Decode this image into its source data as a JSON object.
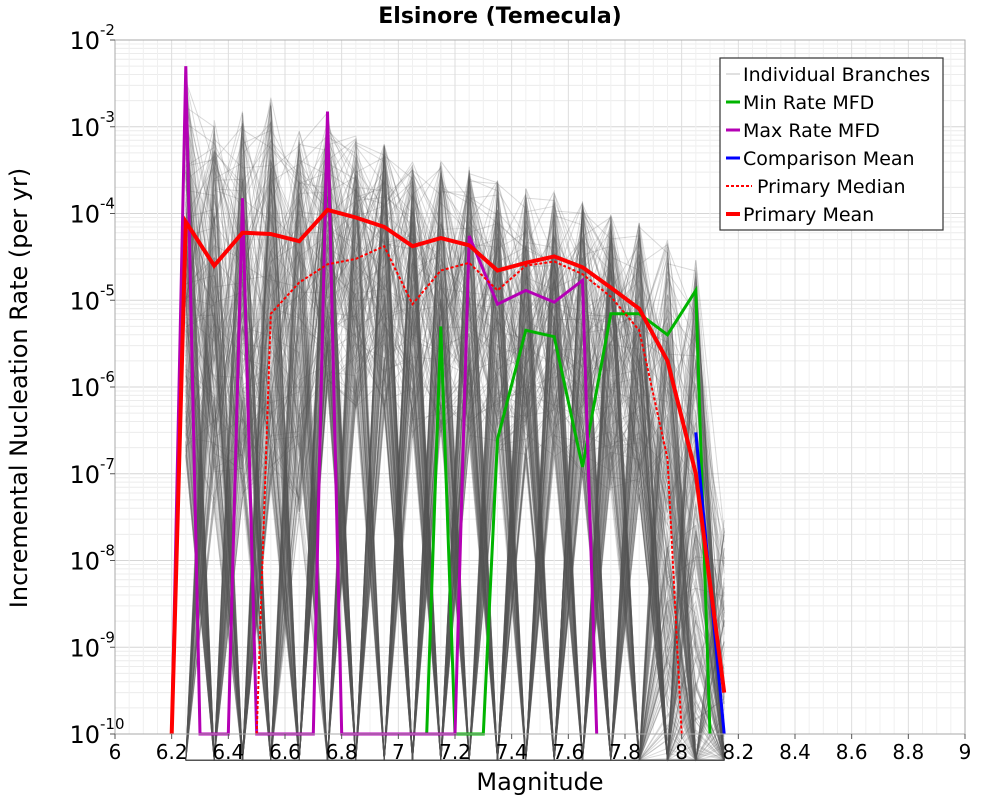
{
  "chart_data": {
    "type": "line",
    "title": "Elsinore (Temecula)",
    "xlabel": "Magnitude",
    "ylabel": "Incremental Nucleation Rate (per yr)",
    "xlim": [
      6,
      9
    ],
    "ylim": [
      1e-10,
      0.01
    ],
    "yscale": "log",
    "grid": true,
    "legend_position": "top-right",
    "xticks": [
      "6",
      "6.2",
      "6.4",
      "6.6",
      "6.8",
      "7",
      "7.2",
      "7.4",
      "7.6",
      "7.8",
      "8",
      "8.2",
      "8.4",
      "8.6",
      "8.8",
      "9"
    ],
    "yticks": [
      {
        "base": "10",
        "exp": "-10"
      },
      {
        "base": "10",
        "exp": "-9"
      },
      {
        "base": "10",
        "exp": "-8"
      },
      {
        "base": "10",
        "exp": "-7"
      },
      {
        "base": "10",
        "exp": "-6"
      },
      {
        "base": "10",
        "exp": "-5"
      },
      {
        "base": "10",
        "exp": "-4"
      },
      {
        "base": "10",
        "exp": "-3"
      },
      {
        "base": "10",
        "exp": "-2"
      }
    ],
    "legend": [
      {
        "label": "Individual Branches",
        "color": "#c0c0c0",
        "style": "solid"
      },
      {
        "label": "Min Rate MFD",
        "color": "#00b400",
        "style": "solid"
      },
      {
        "label": "Max Rate MFD",
        "color": "#b400b4",
        "style": "solid"
      },
      {
        "label": "Comparison Mean",
        "color": "#0000ff",
        "style": "solid"
      },
      {
        "label": "Primary Median",
        "color": "#ff0000",
        "style": "dotted"
      },
      {
        "label": "Primary Mean",
        "color": "#ff0000",
        "style": "solid"
      }
    ],
    "branch_envelope": {
      "color": "#555555",
      "x": [
        6.25,
        6.35,
        6.45,
        6.55,
        6.65,
        6.75,
        6.85,
        6.95,
        7.05,
        7.15,
        7.25,
        7.35,
        7.45,
        7.55,
        7.65,
        7.75,
        7.85,
        7.95,
        8.05,
        8.15
      ],
      "upper": [
        0.005,
        0.0012,
        0.0015,
        0.0022,
        0.0009,
        0.0015,
        0.0008,
        0.0007,
        0.0004,
        0.0004,
        0.00035,
        0.00025,
        0.0002,
        0.00018,
        0.00014,
        0.0001,
        8e-05,
        5e-05,
        3e-05,
        3e-08
      ]
    },
    "series": [
      {
        "name": "Min Rate MFD",
        "color": "#00b400",
        "style": "solid",
        "x": [
          7.1,
          7.15,
          7.2,
          7.3,
          7.35,
          7.45,
          7.55,
          7.65,
          7.75,
          7.85,
          7.95,
          8.05,
          8.1
        ],
        "values": [
          1e-10,
          5e-06,
          1e-10,
          1e-10,
          2.5e-07,
          4.5e-06,
          3.8e-06,
          1.2e-07,
          7e-06,
          7e-06,
          4e-06,
          1.3e-05,
          1e-10
        ]
      },
      {
        "name": "Max Rate MFD",
        "color": "#b400b4",
        "style": "solid",
        "x": [
          6.2,
          6.25,
          6.3,
          6.4,
          6.45,
          6.5,
          6.7,
          6.75,
          6.8,
          7.2,
          7.25,
          7.35,
          7.45,
          7.55,
          7.65,
          7.7
        ],
        "values": [
          1e-10,
          0.005,
          1e-10,
          1e-10,
          0.00015,
          1e-10,
          1e-10,
          0.0015,
          1e-10,
          1e-10,
          5.5e-05,
          9e-06,
          1.3e-05,
          9.5e-06,
          1.7e-05,
          1e-10
        ]
      },
      {
        "name": "Comparison Mean",
        "color": "#0000ff",
        "style": "solid",
        "x": [
          8.05,
          8.15
        ],
        "values": [
          3e-07,
          1e-10
        ]
      },
      {
        "name": "Primary Median",
        "color": "#ff0000",
        "style": "dotted",
        "x": [
          6.5,
          6.55,
          6.65,
          6.75,
          6.85,
          6.95,
          7.05,
          7.15,
          7.25,
          7.35,
          7.45,
          7.55,
          7.65,
          7.75,
          7.85,
          7.95,
          8.0
        ],
        "values": [
          1e-10,
          7e-06,
          1.6e-05,
          2.6e-05,
          3e-05,
          4.2e-05,
          9e-06,
          2.2e-05,
          2.7e-05,
          1.3e-05,
          2.5e-05,
          2.8e-05,
          2e-05,
          1.1e-05,
          4.5e-06,
          1.5e-07,
          1e-10
        ]
      },
      {
        "name": "Primary Mean",
        "color": "#ff0000",
        "style": "solid",
        "x": [
          6.2,
          6.25,
          6.35,
          6.45,
          6.55,
          6.65,
          6.75,
          6.85,
          6.95,
          7.05,
          7.15,
          7.25,
          7.35,
          7.45,
          7.55,
          7.65,
          7.75,
          7.85,
          7.95,
          8.05,
          8.15
        ],
        "values": [
          1e-10,
          8e-05,
          2.5e-05,
          6e-05,
          5.8e-05,
          4.8e-05,
          0.00011,
          9e-05,
          7e-05,
          4.2e-05,
          5.2e-05,
          4.3e-05,
          2.2e-05,
          2.7e-05,
          3.2e-05,
          2.4e-05,
          1.4e-05,
          8e-06,
          2e-06,
          1e-07,
          3e-10
        ]
      }
    ]
  }
}
